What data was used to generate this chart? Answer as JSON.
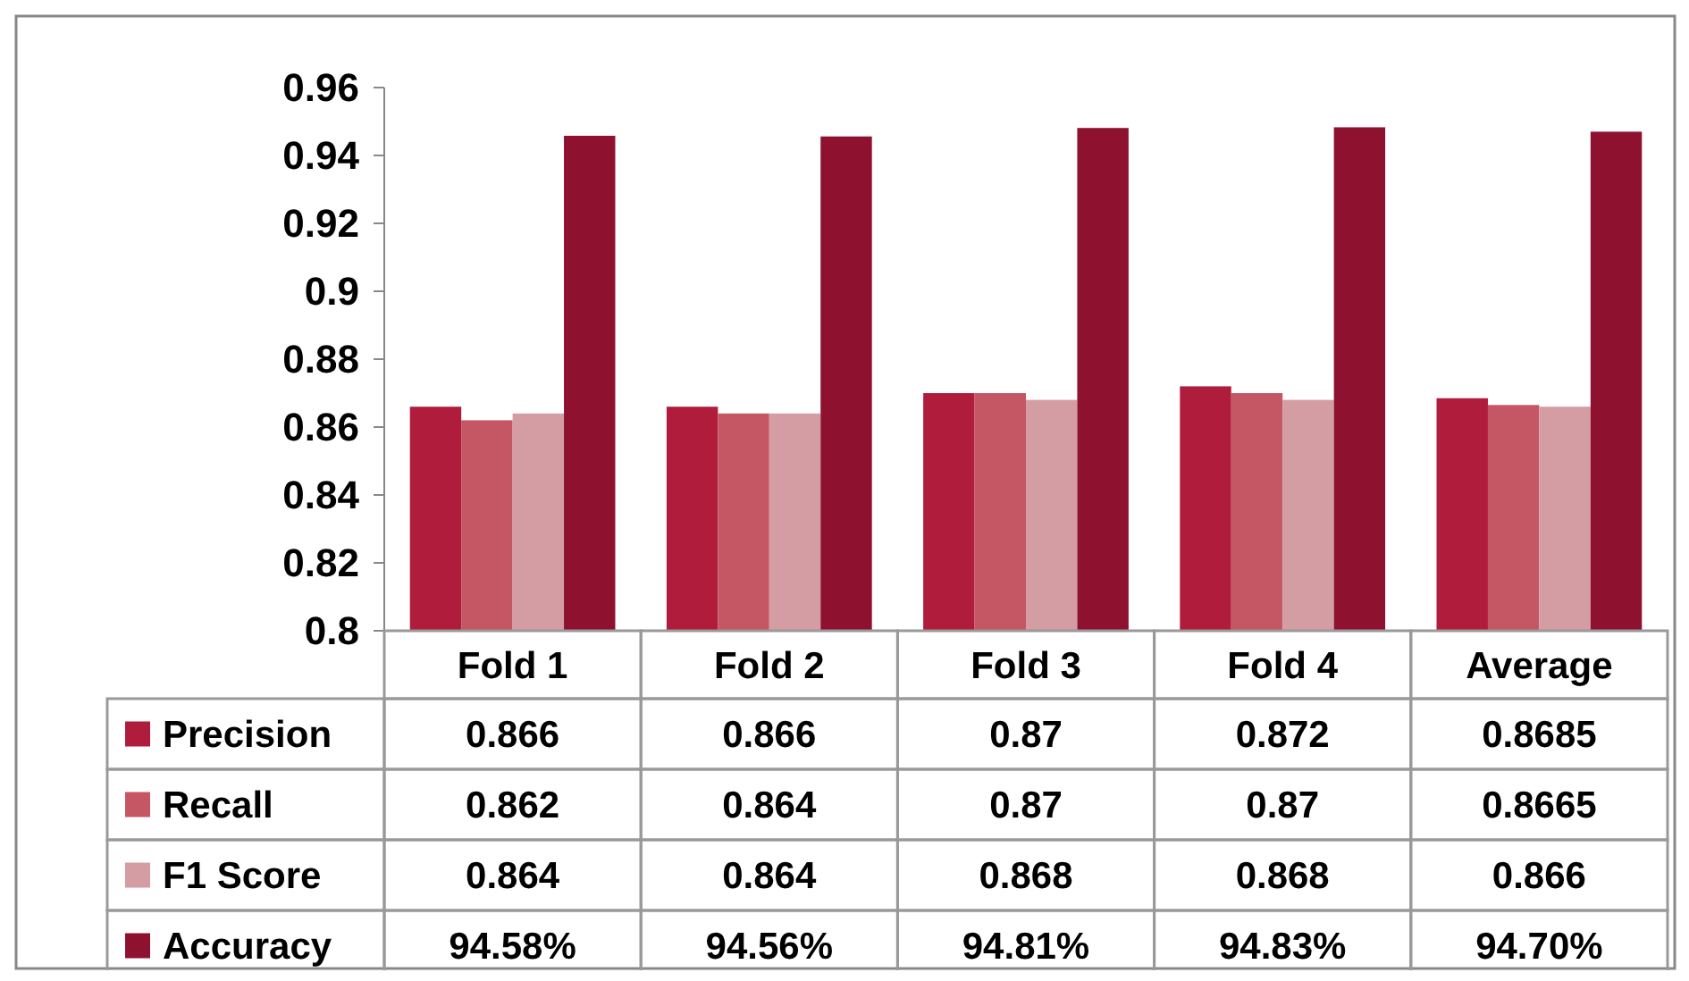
{
  "chart_data": {
    "type": "bar",
    "categories": [
      "Fold 1",
      "Fold 2",
      "Fold 3",
      "Fold 4",
      "Average"
    ],
    "series": [
      {
        "name": "Precision",
        "color": "#b01c3c",
        "values": [
          0.866,
          0.866,
          0.87,
          0.872,
          0.8685
        ],
        "value_labels": [
          "0.866",
          "0.866",
          "0.87",
          "0.872",
          "0.8685"
        ]
      },
      {
        "name": "Recall",
        "color": "#c55663",
        "values": [
          0.862,
          0.864,
          0.87,
          0.87,
          0.8665
        ],
        "value_labels": [
          "0.862",
          "0.864",
          "0.87",
          "0.87",
          "0.8665"
        ]
      },
      {
        "name": "F1 Score",
        "color": "#d49ca3",
        "values": [
          0.864,
          0.864,
          0.868,
          0.868,
          0.866
        ],
        "value_labels": [
          "0.864",
          "0.864",
          "0.868",
          "0.868",
          "0.866"
        ]
      },
      {
        "name": "Accuracy",
        "color": "#8e1230",
        "values": [
          0.9458,
          0.9456,
          0.9481,
          0.9483,
          0.947
        ],
        "value_labels": [
          "94.58%",
          "94.56%",
          "94.81%",
          "94.83%",
          "94.70%"
        ]
      }
    ],
    "ylim": [
      0.8,
      0.96
    ],
    "yticks": [
      0.8,
      0.82,
      0.84,
      0.86,
      0.88,
      0.9,
      0.92,
      0.94,
      0.96
    ],
    "grid": false,
    "legend": "bottom"
  }
}
